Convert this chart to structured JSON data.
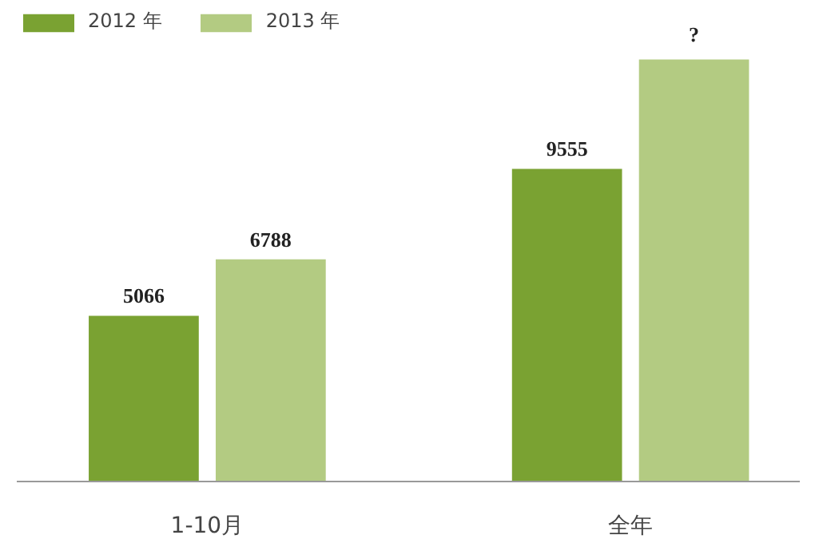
{
  "chart_data": {
    "type": "bar",
    "categories": [
      "1-10月",
      "全年"
    ],
    "legend": "top left",
    "series": [
      {
        "name": "2012 年",
        "color": "#7aa232",
        "values": [
          5066,
          9555
        ],
        "value_labels": [
          "5066",
          "9555"
        ]
      },
      {
        "name": "2013 年",
        "color": "#b3cb82",
        "values": [
          6788,
          12900
        ],
        "value_labels": [
          "6788",
          "?"
        ]
      }
    ]
  }
}
